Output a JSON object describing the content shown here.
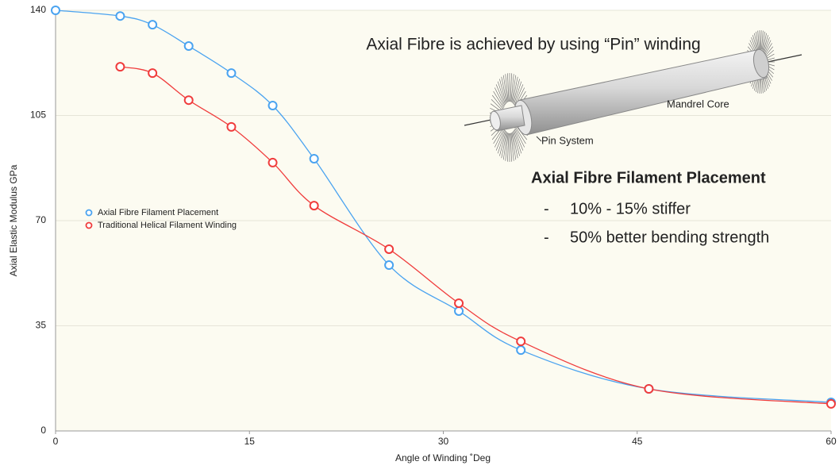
{
  "chart_data": {
    "type": "line",
    "x_label": "Angle of Winding  ˚Deg",
    "y_label": "Axial Elastic Modulus  GPa",
    "xlim": [
      0,
      60
    ],
    "xticks": [
      0,
      15,
      30,
      45,
      60
    ],
    "ylim": [
      0,
      140
    ],
    "yticks": [
      0,
      35,
      70,
      105,
      140
    ],
    "grid": true,
    "legend": "left",
    "series": [
      {
        "name": "Axial Fibre Filament Placement",
        "color": "#4aa3f0",
        "x": [
          0,
          5,
          7.5,
          10.3,
          13.6,
          16.8,
          20,
          25.8,
          31.2,
          36,
          45.9,
          60
        ],
        "values": [
          140,
          138.1,
          135.2,
          128.1,
          119.1,
          108.3,
          90.6,
          55.2,
          39.9,
          26.9,
          14,
          9.5
        ]
      },
      {
        "name": "Traditional Helical Filament Winding",
        "color": "#f03c3c",
        "x": [
          5,
          7.5,
          10.3,
          13.6,
          16.8,
          20,
          25.8,
          31.2,
          36,
          45.9,
          60
        ],
        "values": [
          121.2,
          119.1,
          110.1,
          101.2,
          89.3,
          75,
          60.5,
          42.5,
          29.8,
          14,
          9
        ]
      }
    ],
    "annotations": {
      "headline": "Axial Fibre is achieved by using “Pin” winding",
      "mandrel": "Mandrel Core",
      "pin": "Pin System",
      "box_title": "Axial Fibre Filament Placement",
      "bullet": "-",
      "items": [
        "10% - 15% stiffer",
        "50% better bending strength"
      ]
    }
  }
}
